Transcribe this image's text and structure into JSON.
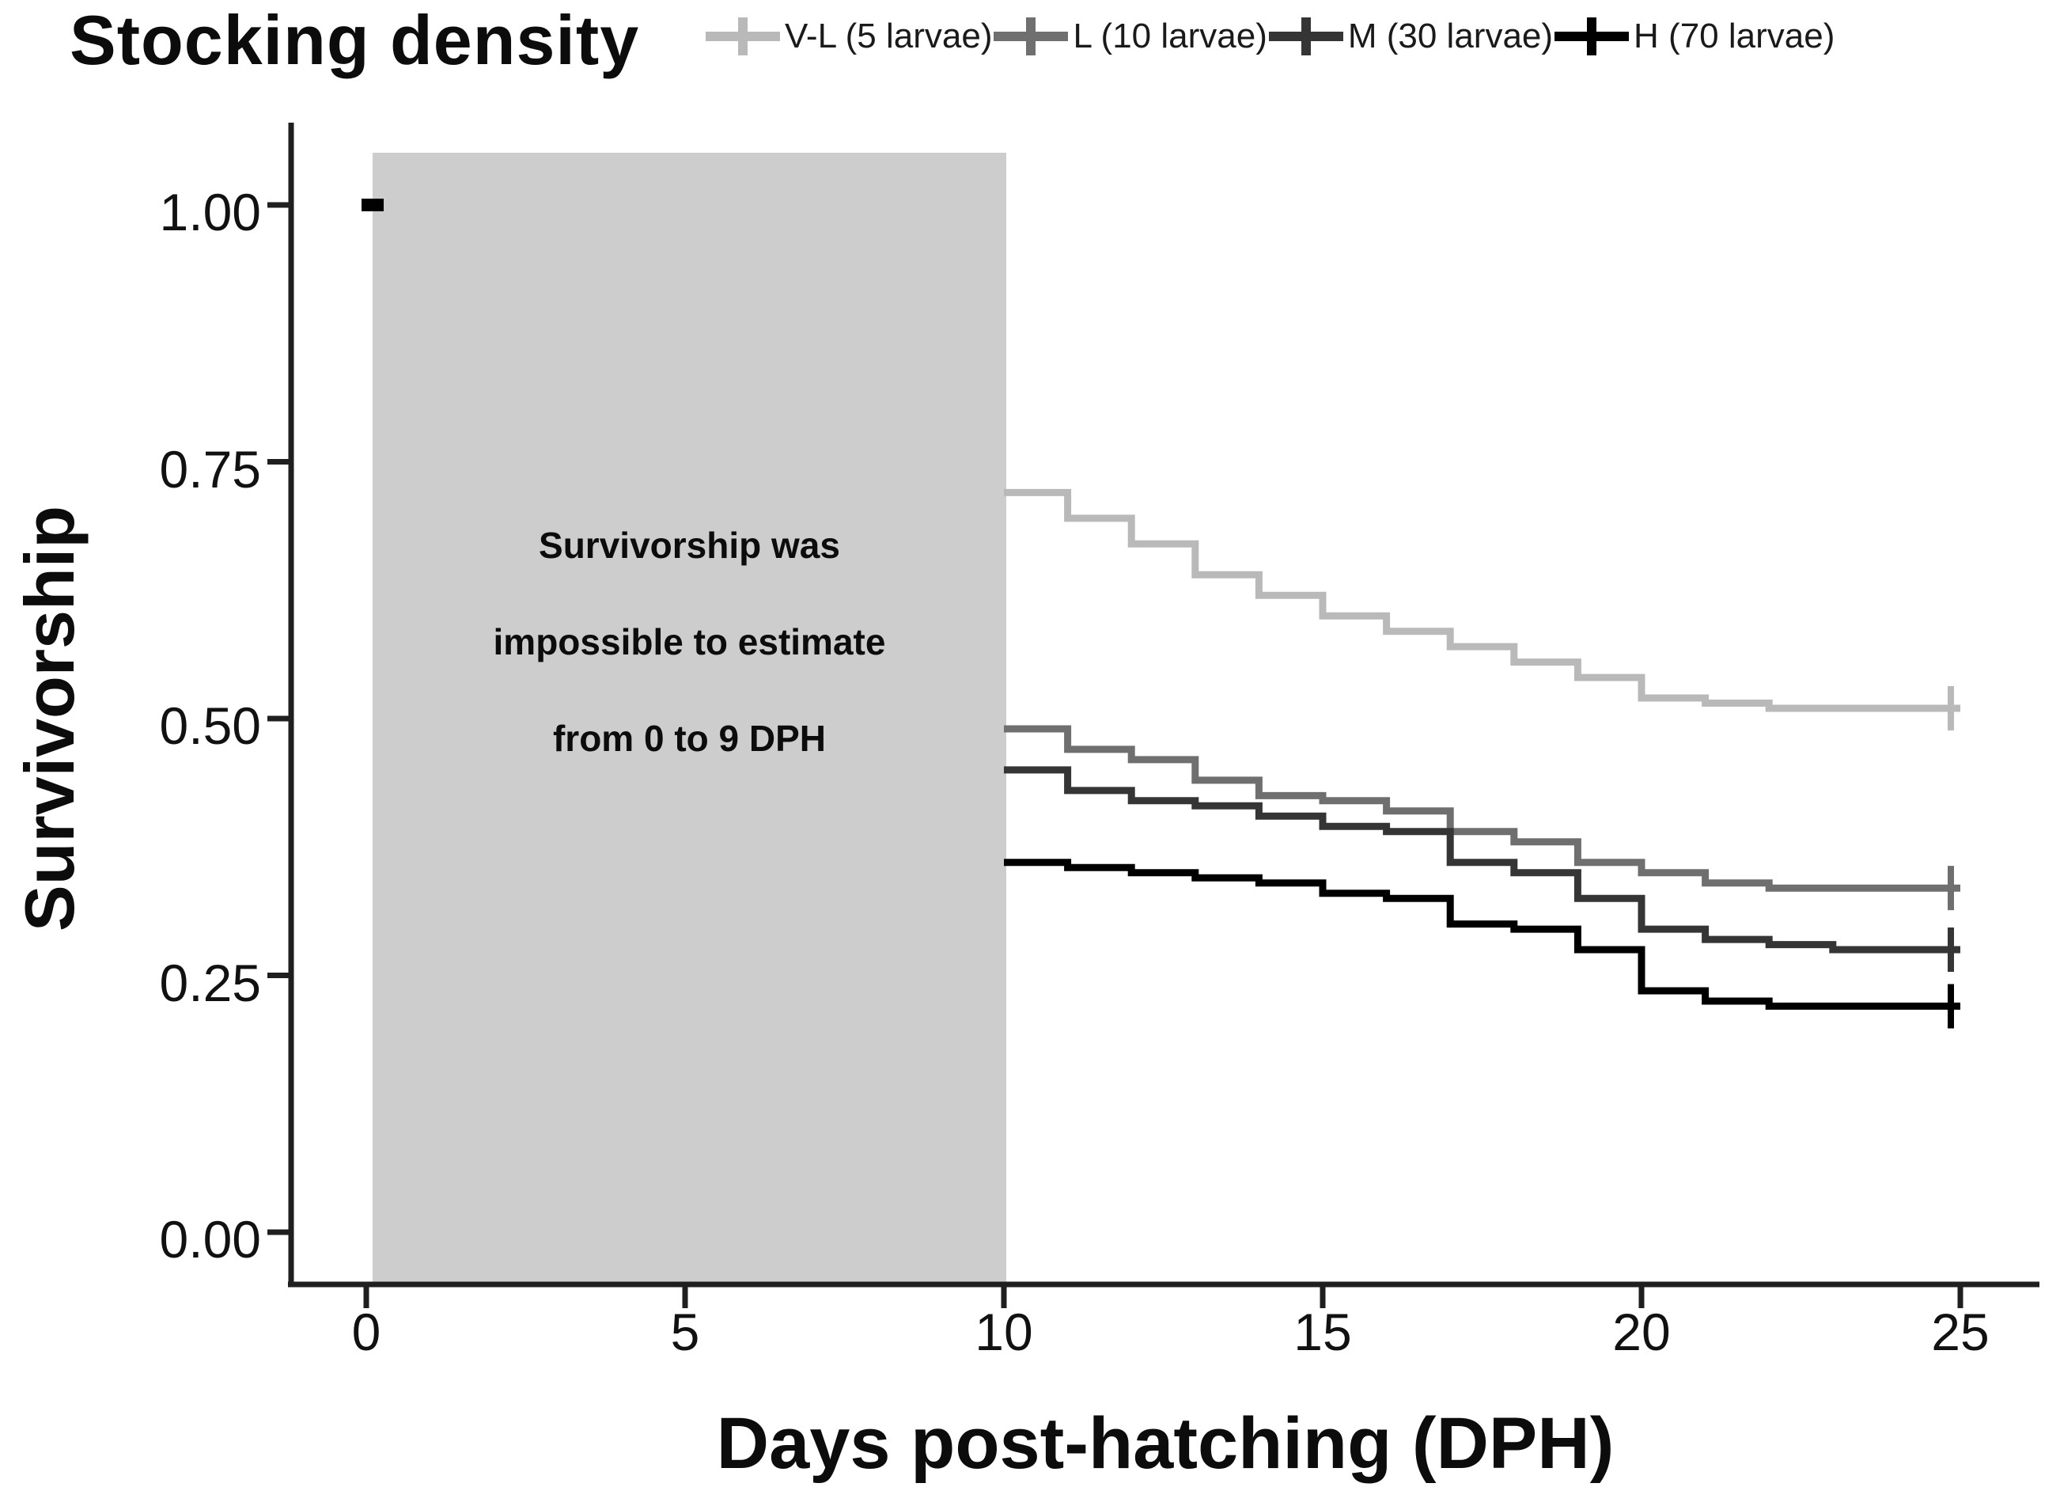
{
  "chart_data": {
    "type": "line",
    "subtype": "kaplan-meier-step-survival",
    "title": "Stocking density",
    "xlabel": "Days post-hatching (DPH)",
    "ylabel": "Survivorship",
    "xlim": [
      0,
      25
    ],
    "ylim": [
      0.0,
      1.0
    ],
    "grid": false,
    "legend_position": "top",
    "x_ticks": {
      "values": [
        0,
        5,
        10,
        15,
        20,
        25
      ],
      "labels": [
        "0",
        "5",
        "10",
        "15",
        "20",
        "25"
      ]
    },
    "y_ticks": {
      "values": [
        1.0,
        0.75,
        0.5,
        0.25,
        0.0
      ],
      "labels": [
        "1.00",
        "0.75",
        "0.50",
        "0.25",
        "0.00"
      ]
    },
    "initial_point": {
      "x": 0,
      "y": 1.0
    },
    "annotation": {
      "lines": [
        "Survivorship was",
        "impossible to estimate",
        "from 0 to 9 DPH"
      ],
      "x_range": [
        0,
        10
      ],
      "fill": "#cdcdcd"
    },
    "x": [
      10,
      11,
      12,
      13,
      14,
      15,
      16,
      17,
      18,
      19,
      20,
      21,
      22,
      23,
      24,
      25
    ],
    "series": [
      {
        "id": "vl",
        "name": "V-L (5 larvae)",
        "color": "#b9b9b9",
        "values": [
          0.72,
          0.695,
          0.67,
          0.64,
          0.62,
          0.6,
          0.585,
          0.57,
          0.555,
          0.54,
          0.52,
          0.515,
          0.51,
          0.51,
          0.51,
          0.51
        ]
      },
      {
        "id": "l",
        "name": "L (10 larvae)",
        "color": "#6f6f6f",
        "values": [
          0.49,
          0.47,
          0.46,
          0.44,
          0.425,
          0.42,
          0.41,
          0.39,
          0.38,
          0.36,
          0.35,
          0.34,
          0.335,
          0.335,
          0.335,
          0.335
        ]
      },
      {
        "id": "m",
        "name": "M (30 larvae)",
        "color": "#353535",
        "values": [
          0.45,
          0.43,
          0.42,
          0.415,
          0.405,
          0.395,
          0.39,
          0.36,
          0.35,
          0.325,
          0.295,
          0.285,
          0.28,
          0.275,
          0.275,
          0.275
        ]
      },
      {
        "id": "h",
        "name": "H (70 larvae)",
        "color": "#000000",
        "values": [
          0.36,
          0.355,
          0.35,
          0.345,
          0.34,
          0.33,
          0.325,
          0.3,
          0.295,
          0.275,
          0.235,
          0.225,
          0.22,
          0.22,
          0.22,
          0.22
        ]
      }
    ],
    "censor_marks_at_x": 25,
    "colors": {
      "axis": "#1f1f1f",
      "annotation_box": "#cdcdcd",
      "background": "#ffffff"
    }
  }
}
